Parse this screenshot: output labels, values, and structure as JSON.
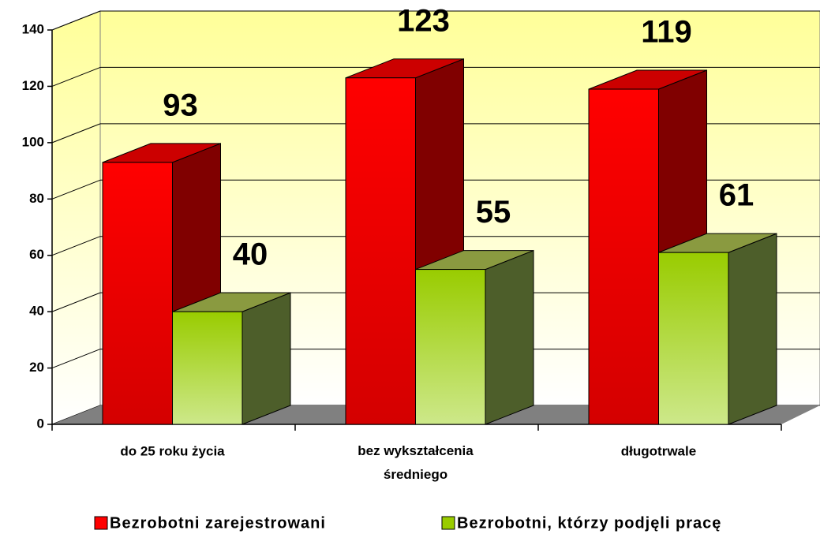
{
  "chart_data": {
    "type": "bar3d",
    "categories": [
      "do 25 roku życia",
      "bez wykształcenia średniego",
      "długotrwale"
    ],
    "series": [
      {
        "name": "Bezrobotni zarejestrowani",
        "color": "#ff0000",
        "values": [
          93,
          123,
          119
        ]
      },
      {
        "name": "Bezrobotni, którzy podjęli pracę",
        "color": "#99cc00",
        "values": [
          40,
          55,
          61
        ]
      }
    ],
    "ylim": [
      0,
      140
    ],
    "yticks": [
      0,
      20,
      40,
      60,
      80,
      100,
      120,
      140
    ],
    "grid": true,
    "legend": "bottom"
  }
}
